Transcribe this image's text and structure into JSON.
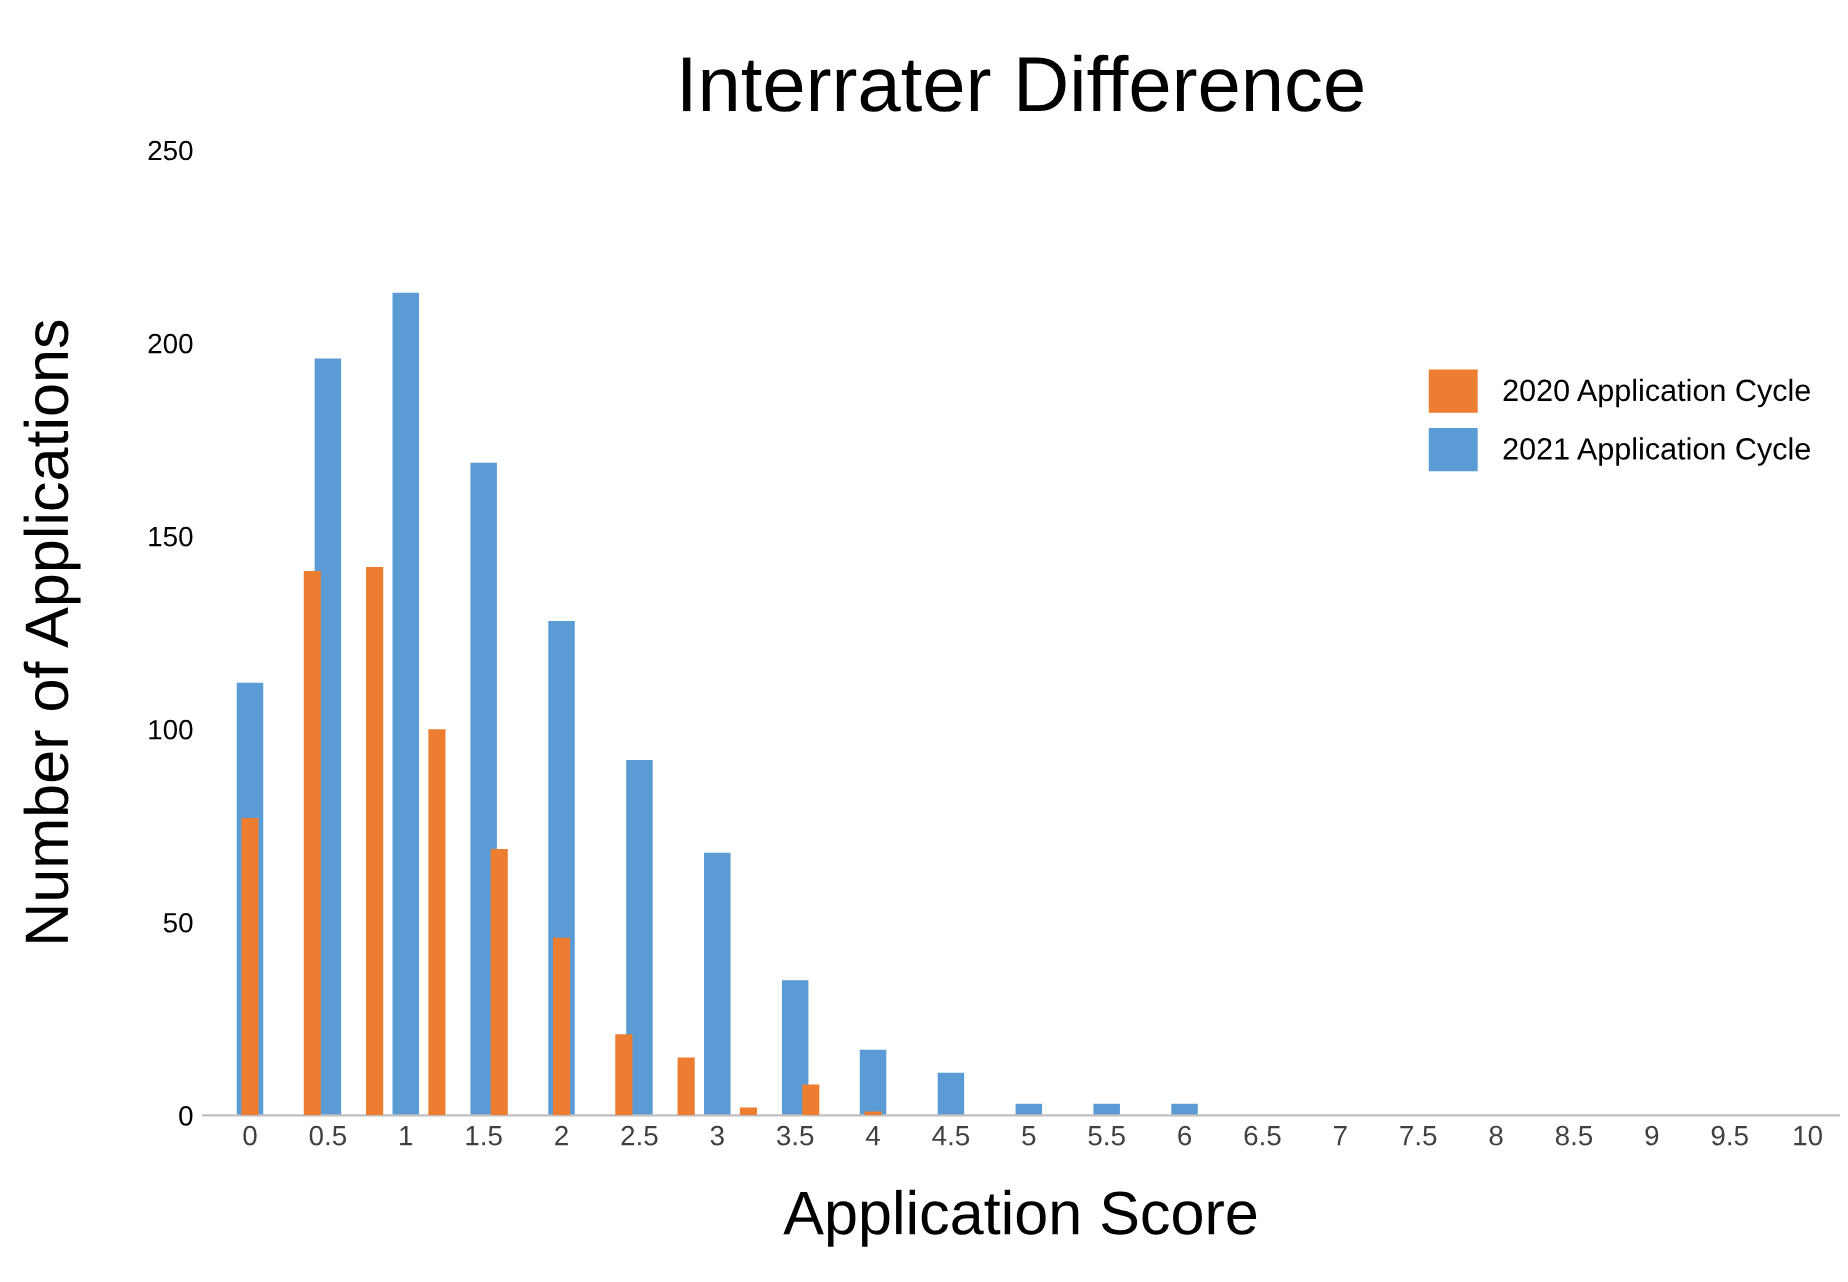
{
  "chart_data": {
    "type": "bar",
    "title": "Interrater Difference",
    "xlabel": "Application Score",
    "ylabel": "Number of Applications",
    "series": [
      {
        "name": "2021 Application Cycle",
        "color": "#5b9bd5",
        "x": [
          0,
          0.5,
          1,
          1.5,
          2,
          2.5,
          3,
          3.5,
          4,
          4.5,
          5,
          5.5,
          6
        ],
        "values": [
          112,
          196,
          213,
          169,
          128,
          92,
          68,
          35,
          17,
          11,
          3,
          3,
          3
        ]
      },
      {
        "name": "2020 Application Cycle",
        "color": "#ed7d31",
        "x": [
          0,
          0.4,
          0.8,
          1.2,
          1.6,
          2.0,
          2.4,
          2.8,
          3.2,
          3.6,
          4.0
        ],
        "values": [
          77,
          141,
          142,
          100,
          69,
          46,
          21,
          15,
          2,
          8,
          1
        ]
      }
    ],
    "xlim": [
      -0.3,
      10.2
    ],
    "xticks": [
      0,
      0.5,
      1,
      1.5,
      2,
      2.5,
      3,
      3.5,
      4,
      4.5,
      5,
      5.5,
      6,
      6.5,
      7,
      7.5,
      8,
      8.5,
      9,
      9.5,
      10
    ],
    "ylim": [
      0,
      250
    ],
    "yticks": [
      0,
      50,
      100,
      150,
      200,
      250
    ],
    "grid": false,
    "legend": "right"
  }
}
